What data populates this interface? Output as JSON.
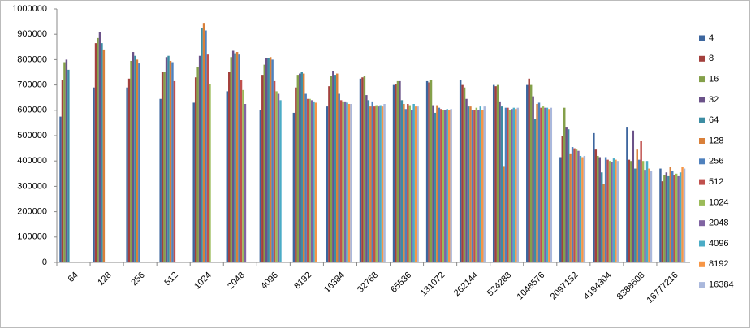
{
  "chart_data": {
    "type": "bar",
    "categories": [
      "64",
      "128",
      "256",
      "512",
      "1024",
      "2048",
      "4096",
      "8192",
      "16384",
      "32768",
      "65536",
      "131072",
      "262144",
      "524288",
      "1048576",
      "2097152",
      "4194304",
      "8388608",
      "16777216"
    ],
    "ylim": [
      0,
      1000000
    ],
    "yticks": [
      0,
      100000,
      200000,
      300000,
      400000,
      500000,
      600000,
      700000,
      800000,
      900000,
      1000000
    ],
    "legend": "right",
    "series": [
      {
        "name": "4",
        "color": "#3d669e",
        "values": [
          575000,
          690000,
          690000,
          645000,
          630000,
          675000,
          600000,
          590000,
          615000,
          725000,
          700000,
          715000,
          720000,
          700000,
          700000,
          415000,
          510000,
          535000,
          370000
        ]
      },
      {
        "name": "8",
        "color": "#a3403d",
        "values": [
          720000,
          865000,
          725000,
          750000,
          730000,
          750000,
          740000,
          690000,
          695000,
          730000,
          705000,
          710000,
          700000,
          695000,
          725000,
          500000,
          445000,
          405000,
          320000
        ]
      },
      {
        "name": "16",
        "color": "#84a04a",
        "values": [
          790000,
          885000,
          795000,
          750000,
          770000,
          810000,
          780000,
          740000,
          735000,
          735000,
          715000,
          720000,
          690000,
          700000,
          700000,
          610000,
          420000,
          400000,
          345000
        ]
      },
      {
        "name": "32",
        "color": "#6b5289",
        "values": [
          800000,
          910000,
          830000,
          810000,
          815000,
          835000,
          805000,
          745000,
          755000,
          660000,
          715000,
          620000,
          645000,
          635000,
          655000,
          535000,
          415000,
          520000,
          355000
        ]
      },
      {
        "name": "64",
        "color": "#3c8da3",
        "values": [
          760000,
          865000,
          815000,
          815000,
          925000,
          825000,
          805000,
          750000,
          740000,
          640000,
          640000,
          590000,
          615000,
          615000,
          565000,
          525000,
          355000,
          370000,
          340000
        ]
      },
      {
        "name": "128",
        "color": "#d9803a",
        "values": [
          null,
          840000,
          800000,
          795000,
          945000,
          830000,
          810000,
          745000,
          745000,
          615000,
          625000,
          620000,
          615000,
          380000,
          625000,
          430000,
          310000,
          445000,
          375000
        ]
      },
      {
        "name": "256",
        "color": "#4f81bd",
        "values": [
          null,
          null,
          785000,
          790000,
          915000,
          820000,
          800000,
          665000,
          665000,
          635000,
          605000,
          610000,
          600000,
          610000,
          630000,
          455000,
          415000,
          405000,
          360000
        ]
      },
      {
        "name": "512",
        "color": "#c0504d",
        "values": [
          null,
          null,
          null,
          715000,
          820000,
          720000,
          715000,
          645000,
          640000,
          615000,
          625000,
          605000,
          600000,
          610000,
          610000,
          450000,
          405000,
          480000,
          345000
        ]
      },
      {
        "name": "1024",
        "color": "#9bbb59",
        "values": [
          null,
          null,
          null,
          null,
          705000,
          680000,
          675000,
          645000,
          635000,
          620000,
          620000,
          600000,
          610000,
          600000,
          615000,
          445000,
          400000,
          400000,
          350000
        ]
      },
      {
        "name": "2048",
        "color": "#8064a2",
        "values": [
          null,
          null,
          null,
          null,
          null,
          625000,
          665000,
          640000,
          635000,
          615000,
          600000,
          600000,
          600000,
          605000,
          610000,
          440000,
          395000,
          365000,
          340000
        ]
      },
      {
        "name": "4096",
        "color": "#4bacc6",
        "values": [
          null,
          null,
          null,
          null,
          null,
          null,
          640000,
          635000,
          630000,
          620000,
          625000,
          605000,
          615000,
          610000,
          610000,
          420000,
          410000,
          400000,
          355000
        ]
      },
      {
        "name": "8192",
        "color": "#f79646",
        "values": [
          null,
          null,
          null,
          null,
          null,
          null,
          null,
          630000,
          625000,
          615000,
          615000,
          600000,
          600000,
          605000,
          605000,
          415000,
          405000,
          370000,
          375000
        ]
      },
      {
        "name": "16384",
        "color": "#aab8dc",
        "values": [
          null,
          null,
          null,
          null,
          null,
          null,
          null,
          null,
          625000,
          625000,
          615000,
          605000,
          615000,
          610000,
          610000,
          420000,
          400000,
          360000,
          370000
        ]
      }
    ]
  }
}
